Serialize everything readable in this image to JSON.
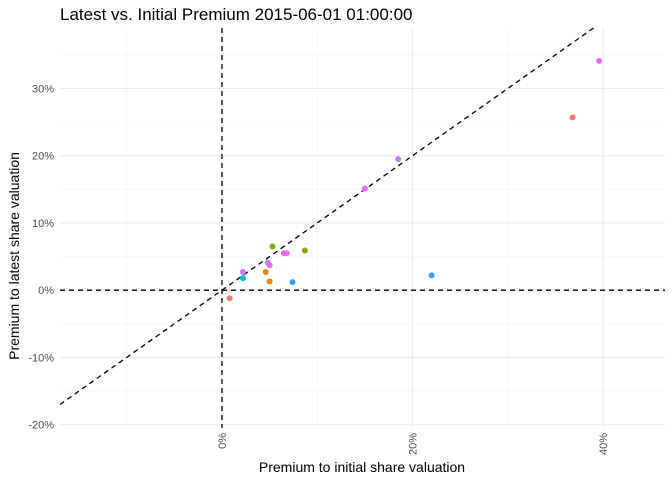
{
  "chart_data": {
    "type": "scatter",
    "title": "Latest vs. Initial Premium 2015-06-01 01:00:00",
    "xlabel": "Premium to initial share valuation",
    "ylabel": "Premium to latest share valuation",
    "xlim": [
      -0.17,
      0.465
    ],
    "ylim": [
      -0.205,
      0.39
    ],
    "x_ticks": [
      {
        "value": 0.0,
        "label": "0%"
      },
      {
        "value": 0.2,
        "label": "20%"
      },
      {
        "value": 0.4,
        "label": "40%"
      }
    ],
    "y_ticks": [
      {
        "value": -0.2,
        "label": "-20%"
      },
      {
        "value": -0.1,
        "label": "-10%"
      },
      {
        "value": 0.0,
        "label": "0%"
      },
      {
        "value": 0.1,
        "label": "10%"
      },
      {
        "value": 0.2,
        "label": "20%"
      },
      {
        "value": 0.3,
        "label": "30%"
      }
    ],
    "grid": true,
    "legend": "none",
    "reference_lines": [
      "x=0",
      "y=0",
      "y=x"
    ],
    "points": [
      {
        "x": 0.396,
        "y": 0.341,
        "color": "#e76bf3"
      },
      {
        "x": 0.368,
        "y": 0.257,
        "color": "#f8766d"
      },
      {
        "x": 0.185,
        "y": 0.195,
        "color": "#c77cff"
      },
      {
        "x": 0.15,
        "y": 0.151,
        "color": "#e76bf3"
      },
      {
        "x": 0.22,
        "y": 0.022,
        "color": "#35a2ff"
      },
      {
        "x": 0.087,
        "y": 0.059,
        "color": "#7cae00"
      },
      {
        "x": 0.053,
        "y": 0.065,
        "color": "#7cae00"
      },
      {
        "x": 0.068,
        "y": 0.055,
        "color": "#e76bf3"
      },
      {
        "x": 0.065,
        "y": 0.055,
        "color": "#e76bf3"
      },
      {
        "x": 0.048,
        "y": 0.041,
        "color": "#c77cff"
      },
      {
        "x": 0.05,
        "y": 0.037,
        "color": "#e76bf3"
      },
      {
        "x": 0.046,
        "y": 0.027,
        "color": "#e58700"
      },
      {
        "x": 0.05,
        "y": 0.013,
        "color": "#e58700"
      },
      {
        "x": 0.074,
        "y": 0.012,
        "color": "#35a2ff"
      },
      {
        "x": 0.022,
        "y": 0.027,
        "color": "#c77cff"
      },
      {
        "x": 0.022,
        "y": 0.018,
        "color": "#00bfc4"
      },
      {
        "x": 0.008,
        "y": -0.012,
        "color": "#f8766d"
      }
    ]
  }
}
